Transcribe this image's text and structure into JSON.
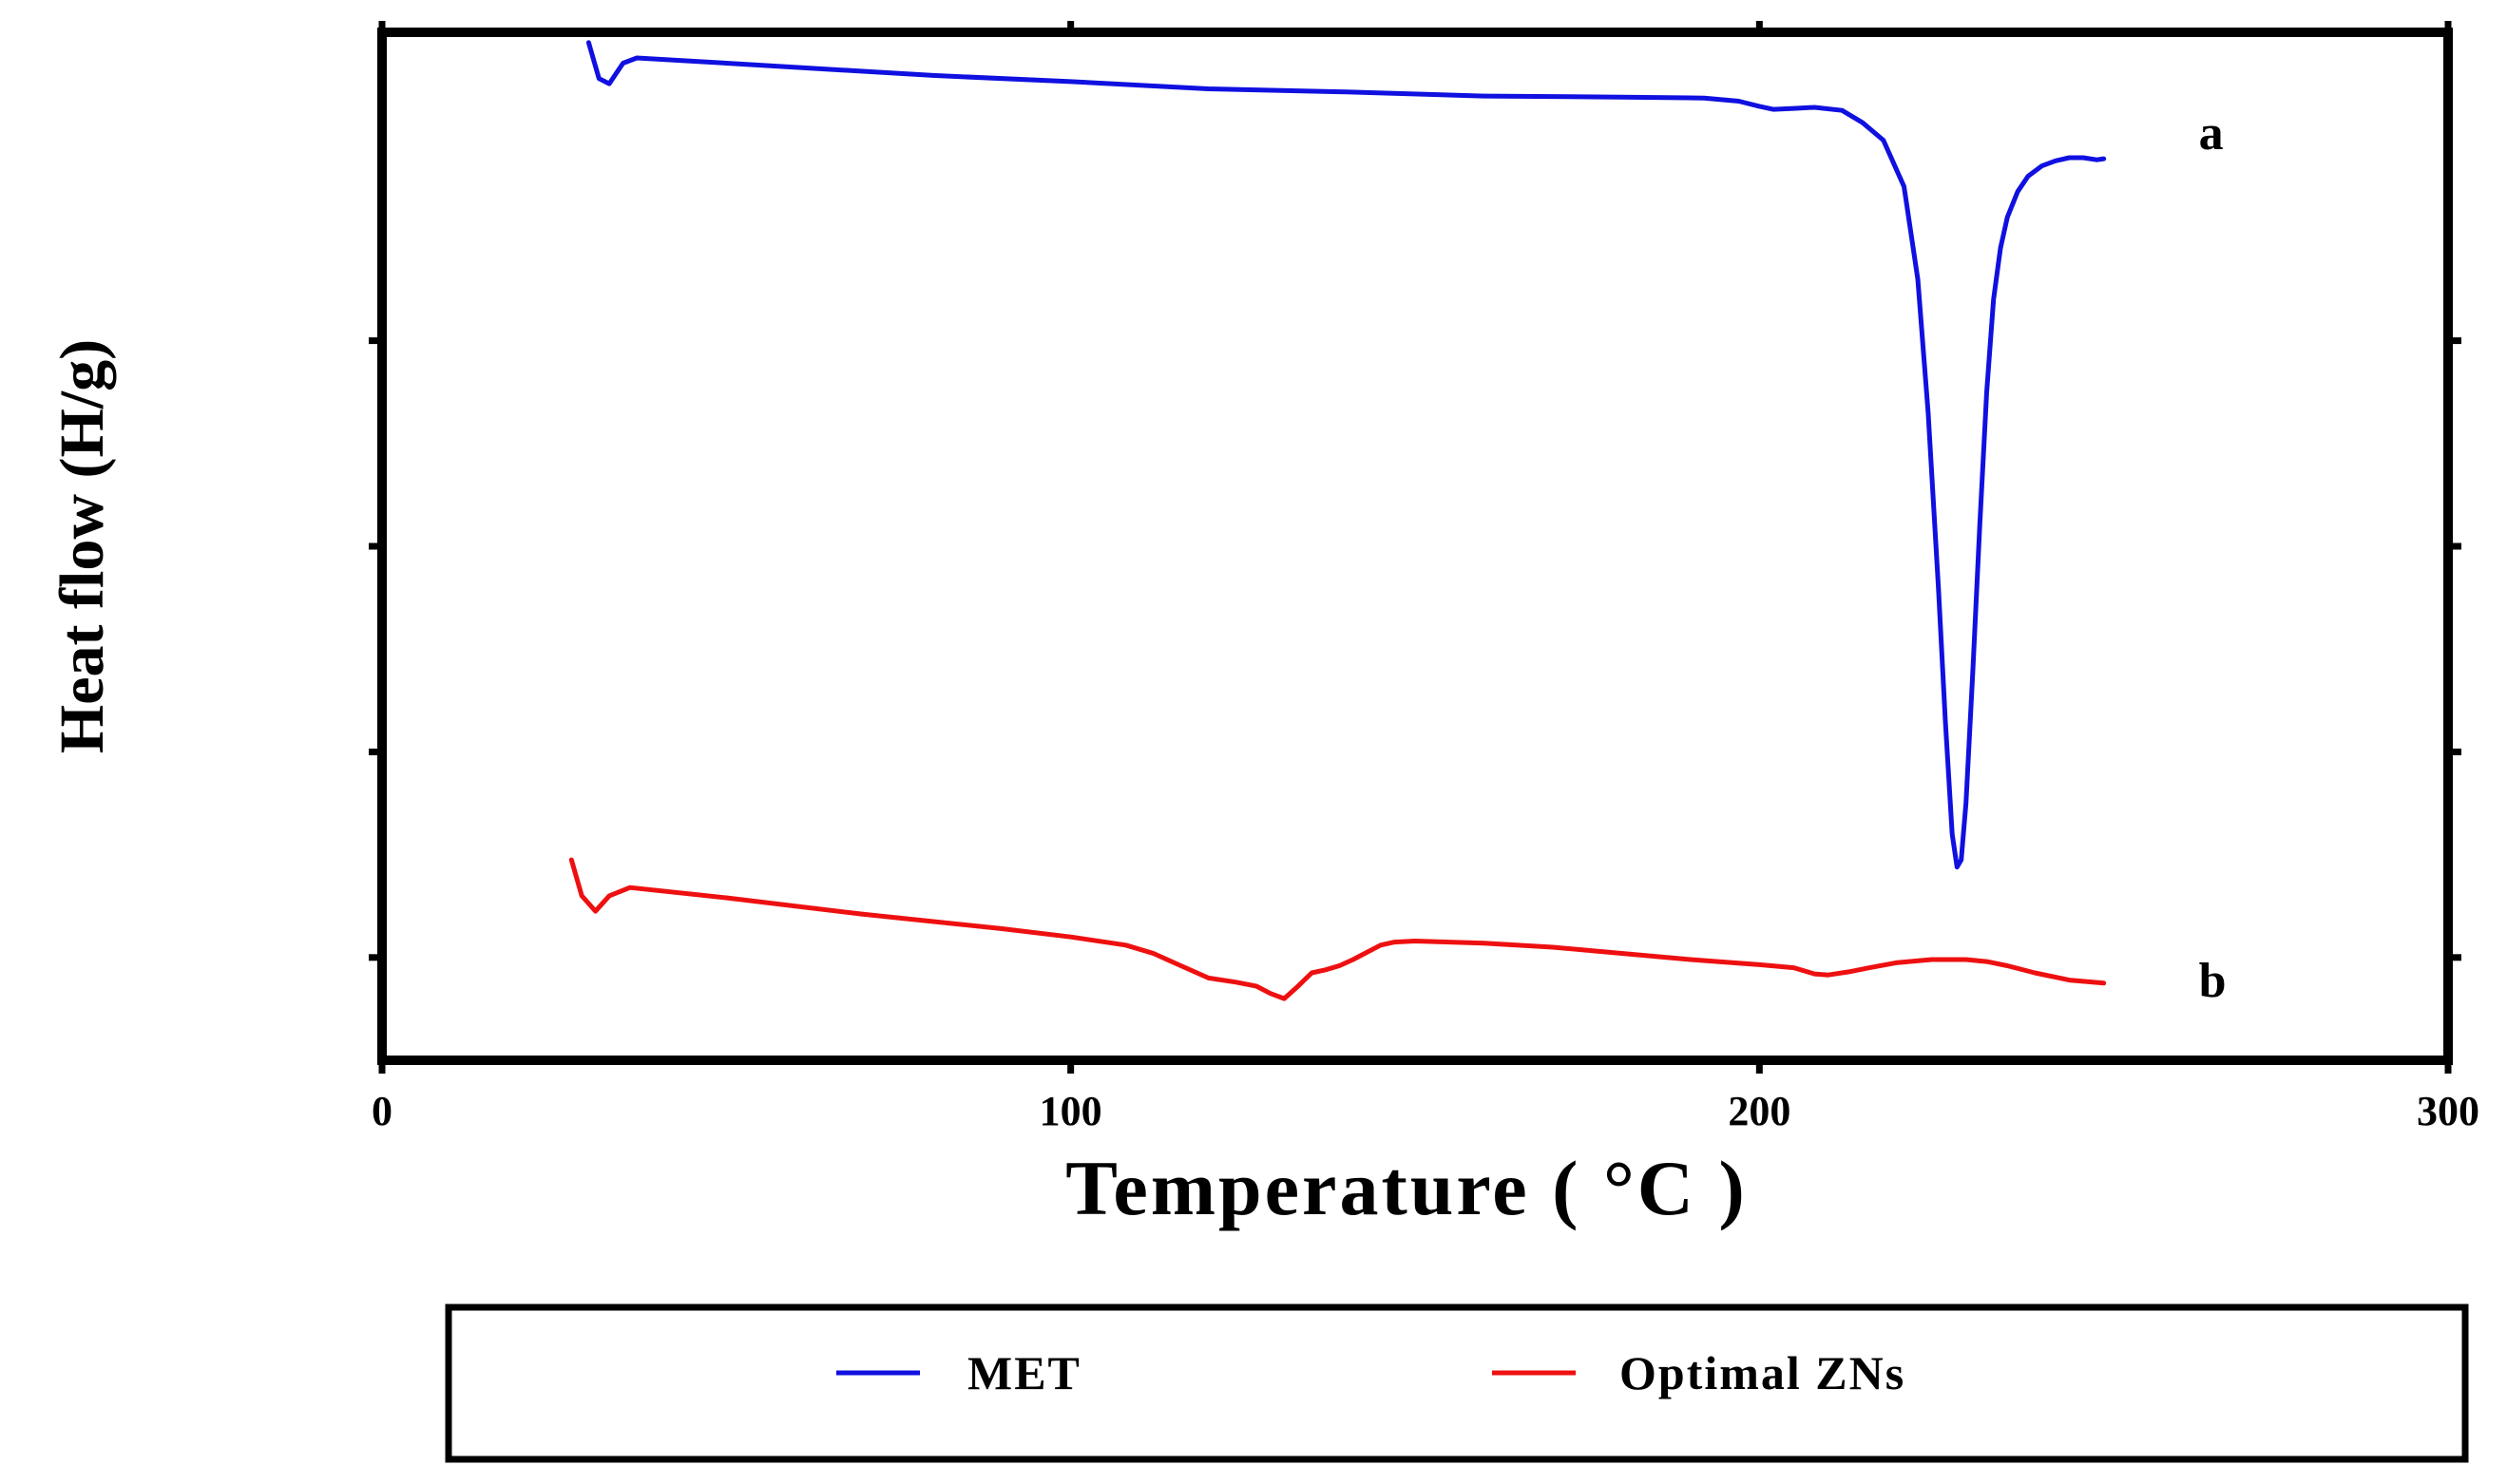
{
  "chart_data": {
    "type": "line",
    "title": "",
    "xlabel": "Temperature  ( °C )",
    "ylabel": "Heat flow (H/g)",
    "xlim": [
      0,
      300
    ],
    "ylim": [
      0,
      10
    ],
    "xticks": [
      0,
      100,
      200,
      300
    ],
    "xtick_labels": [
      "0",
      "100",
      "200",
      "300"
    ],
    "yticks": [
      1,
      3,
      5,
      7
    ],
    "ytick_labels": [
      "",
      "",
      "",
      ""
    ],
    "grid": false,
    "legend_position": "bottom",
    "series": [
      {
        "name": "MET",
        "color": "#1010e0",
        "label": "a",
        "x": [
          30,
          31.5,
          33,
          35,
          37,
          50,
          80,
          100,
          120,
          140,
          160,
          180,
          192,
          197,
          200,
          202,
          205,
          208,
          212,
          215,
          218,
          221,
          223,
          224.5,
          226,
          227,
          228,
          228.7,
          229.3,
          230,
          231,
          232,
          233,
          234,
          235,
          236,
          237.5,
          239,
          241,
          243,
          245,
          247,
          249,
          250
        ],
        "y": [
          9.9,
          9.55,
          9.5,
          9.7,
          9.75,
          9.7,
          9.58,
          9.52,
          9.45,
          9.42,
          9.38,
          9.37,
          9.36,
          9.33,
          9.28,
          9.25,
          9.26,
          9.27,
          9.24,
          9.12,
          8.95,
          8.5,
          7.6,
          6.3,
          4.6,
          3.3,
          2.2,
          1.88,
          1.95,
          2.5,
          3.8,
          5.2,
          6.5,
          7.4,
          7.9,
          8.2,
          8.45,
          8.6,
          8.7,
          8.75,
          8.78,
          8.78,
          8.76,
          8.77
        ]
      },
      {
        "name": "Optimal ZNs",
        "color": "#ee1010",
        "label": "b",
        "x": [
          27.5,
          29,
          31,
          33,
          36,
          50,
          70,
          90,
          100,
          108,
          112,
          116,
          120,
          124,
          127,
          129,
          131,
          133,
          135,
          137,
          139,
          141,
          143,
          145,
          147,
          150,
          155,
          160,
          170,
          180,
          190,
          200,
          205,
          208,
          210,
          213,
          216,
          220,
          225,
          230,
          233,
          236,
          240,
          245,
          250
        ],
        "y": [
          1.95,
          1.6,
          1.45,
          1.6,
          1.68,
          1.58,
          1.42,
          1.28,
          1.2,
          1.12,
          1.04,
          0.92,
          0.8,
          0.76,
          0.72,
          0.65,
          0.6,
          0.72,
          0.85,
          0.88,
          0.92,
          0.98,
          1.05,
          1.12,
          1.15,
          1.16,
          1.15,
          1.14,
          1.1,
          1.04,
          0.98,
          0.93,
          0.9,
          0.84,
          0.83,
          0.86,
          0.9,
          0.95,
          0.98,
          0.98,
          0.96,
          0.92,
          0.85,
          0.78,
          0.75
        ]
      }
    ],
    "annotations": [
      {
        "text": "a",
        "series": "MET"
      },
      {
        "text": "b",
        "series": "Optimal ZNs"
      }
    ]
  }
}
